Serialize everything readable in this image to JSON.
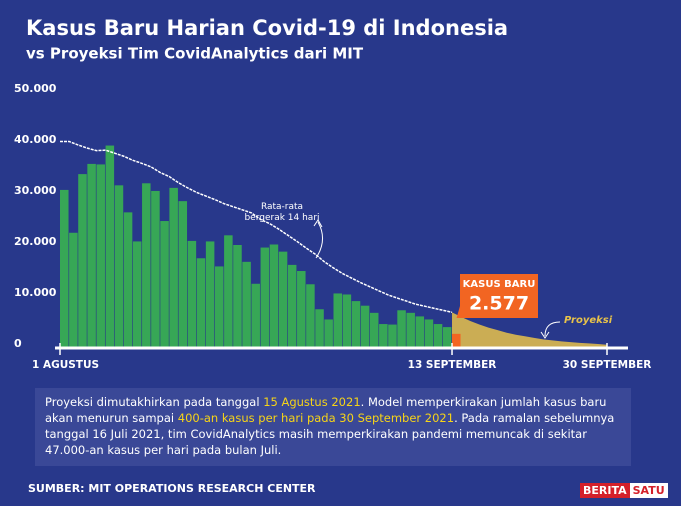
{
  "chart_data": {
    "type": "bar",
    "title": "Kasus Baru Harian Covid-19 di Indonesia",
    "subtitle": "vs Proyeksi Tim CovidAnalytics dari MIT",
    "ylim": [
      0,
      50000
    ],
    "yticks": [
      {
        "value": 0,
        "label": "0"
      },
      {
        "value": 10000,
        "label": "10.000"
      },
      {
        "value": 20000,
        "label": "20.000"
      },
      {
        "value": 30000,
        "label": "30.000"
      },
      {
        "value": 40000,
        "label": "40.000"
      },
      {
        "value": 50000,
        "label": "50.000"
      }
    ],
    "xlim": [
      0,
      60
    ],
    "xticks": [
      {
        "value": 0,
        "label": "1 AGUSTUS"
      },
      {
        "value": 43,
        "label": "13 SEPTEMBER"
      },
      {
        "value": 60,
        "label": "30 SEPTEMBER"
      }
    ],
    "bars": {
      "color": "#37a756",
      "values": [
        30800,
        22400,
        33900,
        35900,
        35800,
        39500,
        31700,
        26400,
        20700,
        32100,
        30600,
        24700,
        31200,
        28600,
        20800,
        17400,
        20700,
        15800,
        21900,
        20000,
        16700,
        12400,
        19500,
        20100,
        18700,
        16100,
        14900,
        12300,
        7400,
        5400,
        10500,
        10300,
        9000,
        8100,
        6700,
        4500,
        4400,
        7200,
        6700,
        6000,
        5400,
        4500,
        3900
      ]
    },
    "highlight": {
      "label": "KASUS BARU",
      "value": 2577,
      "value_label": "2.577",
      "color": "#f26522"
    },
    "moving_average": {
      "label": "Rata-rata bergerak 14 hari",
      "color": "#ffffff",
      "values": [
        40300,
        40300,
        39600,
        39000,
        38500,
        38600,
        38000,
        37400,
        36600,
        36000,
        35300,
        34200,
        33400,
        32200,
        31200,
        30300,
        29600,
        28900,
        28100,
        27500,
        26900,
        26300,
        25000,
        24200,
        23100,
        21900,
        20700,
        19400,
        18200,
        16700,
        15500,
        14400,
        13500,
        12600,
        11800,
        11000,
        10200,
        9600,
        9000,
        8400,
        8000,
        7600,
        7200,
        6800
      ]
    },
    "projection": {
      "label": "Proyeksi",
      "color": "#e7c24a",
      "values": [
        6800,
        5900,
        5100,
        4400,
        3800,
        3300,
        2800,
        2400,
        2100,
        1800,
        1500,
        1300,
        1100,
        950,
        800,
        700,
        600,
        450
      ]
    },
    "note": [
      "Proyeksi dimutakhirkan pada tanggal ",
      "15 Agustus 2021",
      ". Model memperkirakan jumlah kasus baru akan menurun sampai  ",
      "400-an kasus per hari pada 30 September 2021",
      ". Pada ramalan sebelumnya tanggal 16 Juli 2021, tim CovidAnalytics masih memperkirakan pandemi memuncak di sekitar 47.000-an kasus per hari pada bulan Juli."
    ],
    "source": "SUMBER: MIT OPERATIONS RESEARCH CENTER",
    "logo": [
      "BERITA",
      "SATU"
    ]
  }
}
